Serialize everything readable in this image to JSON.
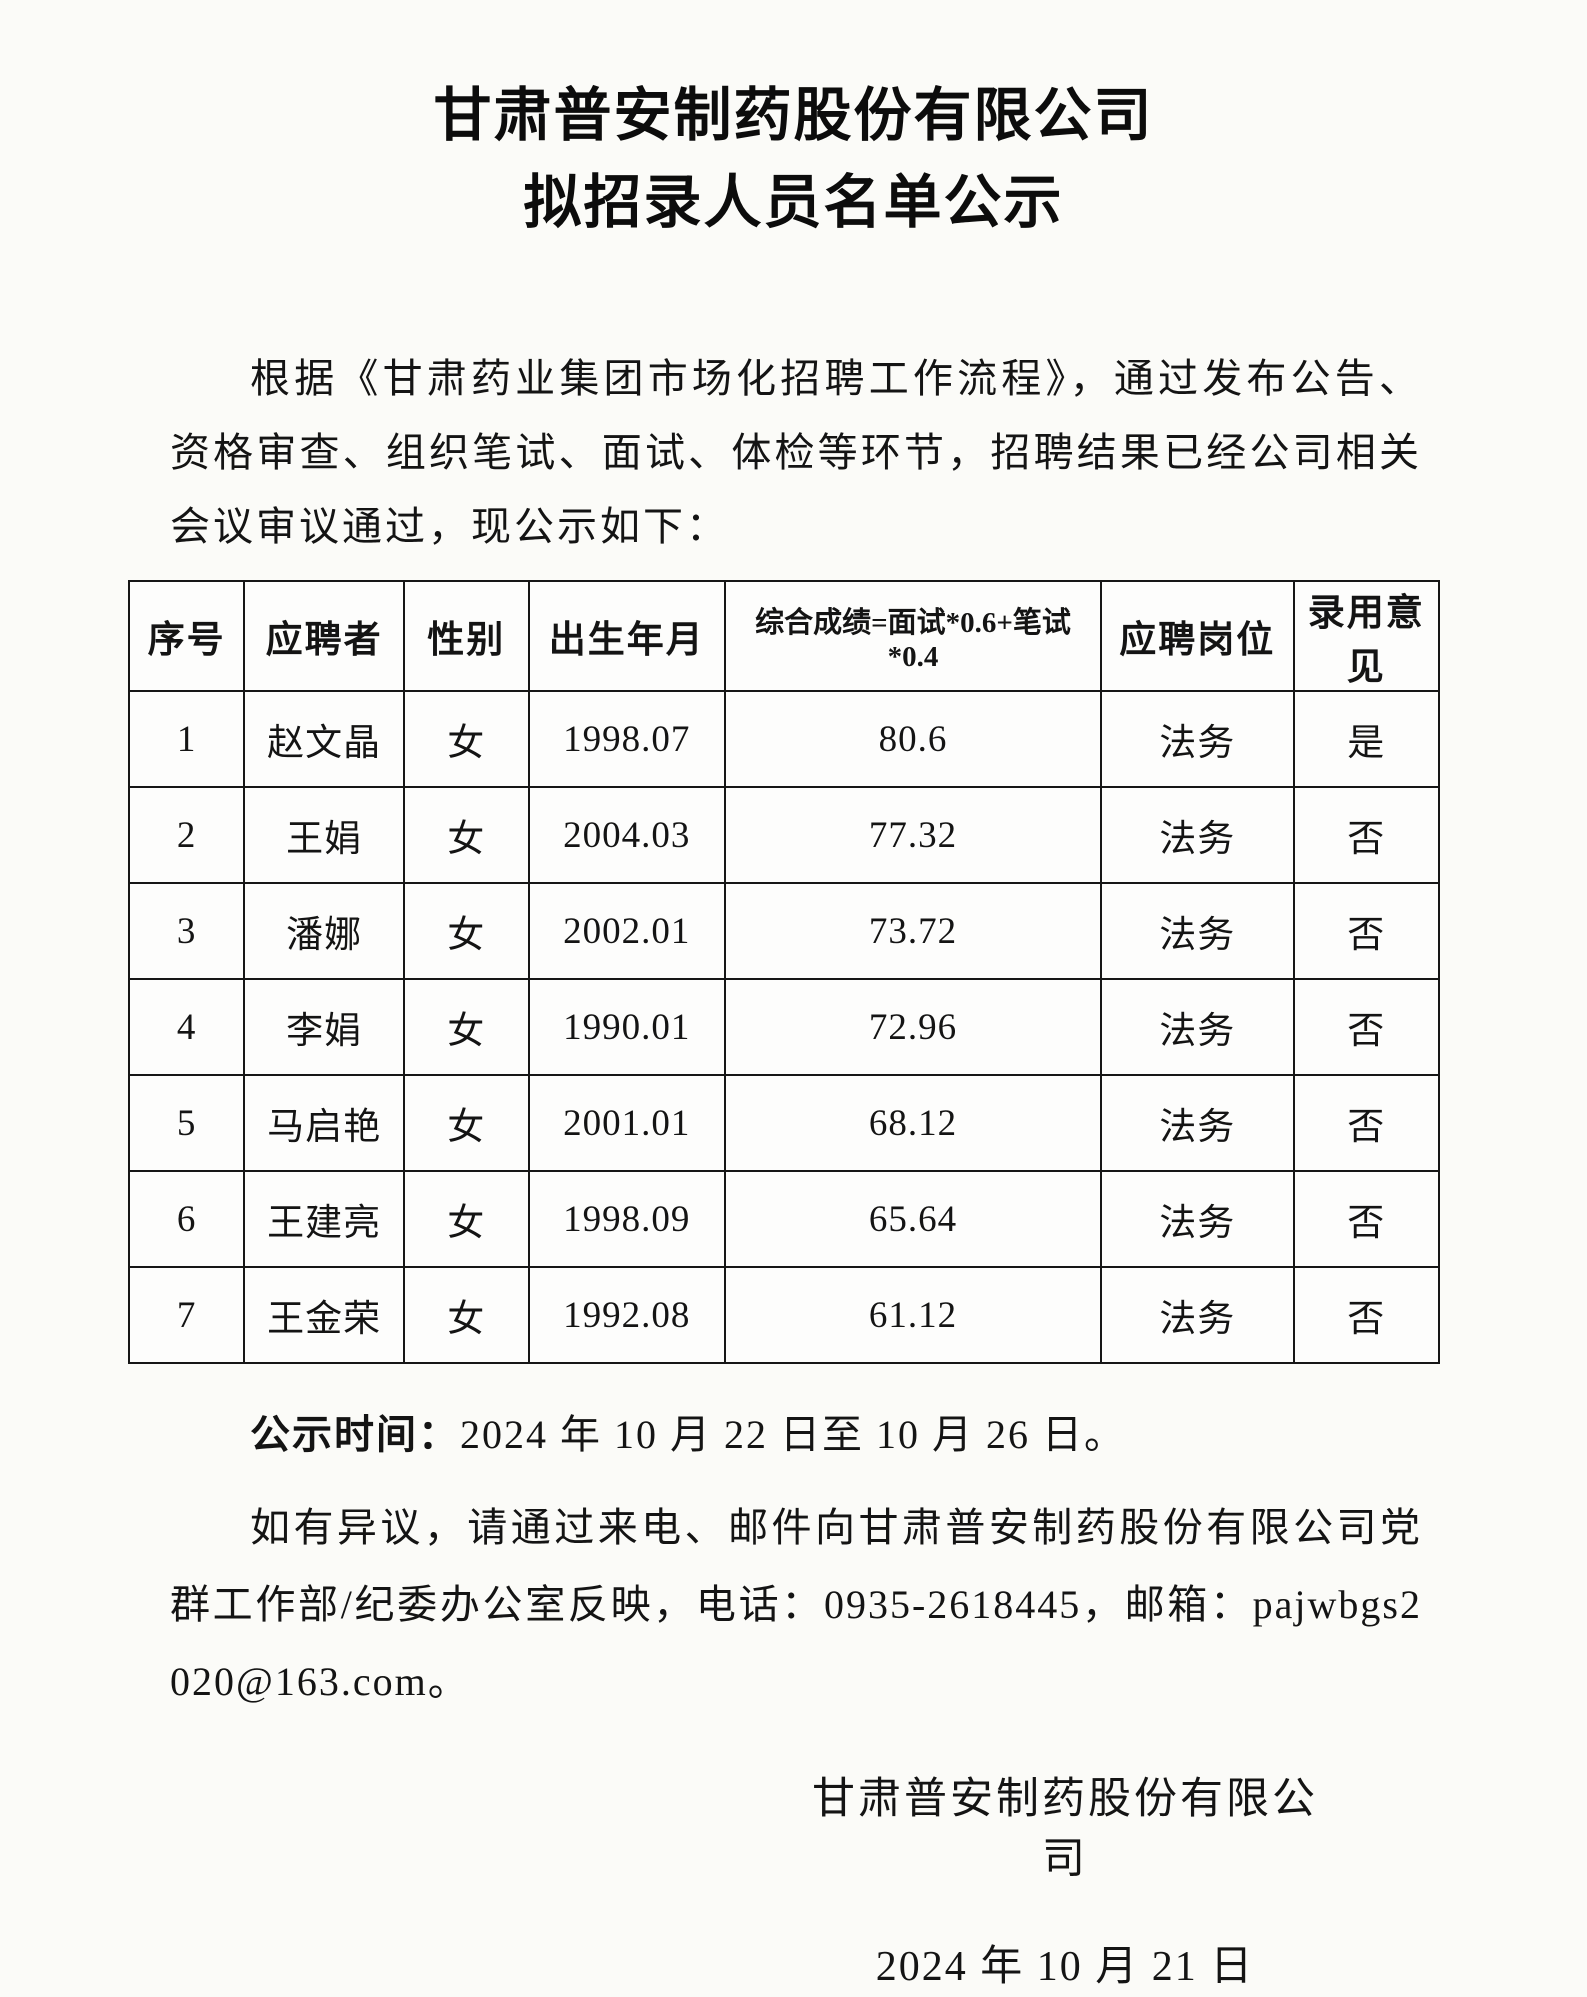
{
  "document": {
    "title_line1": "甘肃普安制药股份有限公司",
    "title_line2": "拟招录人员名单公示",
    "intro_paragraph": "根据《甘肃药业集团市场化招聘工作流程》，通过发布公告、资格审查、组织笔试、面试、体检等环节，招聘结果已经公司相关会议审议通过，现公示如下："
  },
  "table": {
    "headers": [
      "序号",
      "应聘者",
      "性别",
      "出生年月",
      "综合成绩=面试*0.6+笔试*0.4",
      "应聘岗位",
      "录用意见"
    ],
    "column_widths_percent": [
      8.8,
      12.2,
      9.5,
      15.0,
      28.7,
      14.7,
      11.1
    ],
    "rows": [
      [
        "1",
        "赵文晶",
        "女",
        "1998.07",
        "80.6",
        "法务",
        "是"
      ],
      [
        "2",
        "王娟",
        "女",
        "2004.03",
        "77.32",
        "法务",
        "否"
      ],
      [
        "3",
        "潘娜",
        "女",
        "2002.01",
        "73.72",
        "法务",
        "否"
      ],
      [
        "4",
        "李娟",
        "女",
        "1990.01",
        "72.96",
        "法务",
        "否"
      ],
      [
        "5",
        "马启艳",
        "女",
        "2001.01",
        "68.12",
        "法务",
        "否"
      ],
      [
        "6",
        "王建亮",
        "女",
        "1998.09",
        "65.64",
        "法务",
        "否"
      ],
      [
        "7",
        "王金荣",
        "女",
        "1992.08",
        "61.12",
        "法务",
        "否"
      ]
    ]
  },
  "footer": {
    "publicity_label": "公示时间：",
    "publicity_period": "2024 年 10 月 22 日至 10 月 26 日。",
    "objection_paragraph": "如有异议，请通过来电、邮件向甘肃普安制药股份有限公司党群工作部/纪委办公室反映，电话：0935-2618445，邮箱：pajwbgs2020@163.com。",
    "phone": "0935-2618445",
    "email": "pajwbgs2020@163.com"
  },
  "signature": {
    "company": "甘肃普安制药股份有限公司",
    "date": "2024 年 10 月 21 日"
  },
  "colors": {
    "page_background": "#fbfbf8",
    "text": "#141414",
    "table_border": "#161616"
  }
}
